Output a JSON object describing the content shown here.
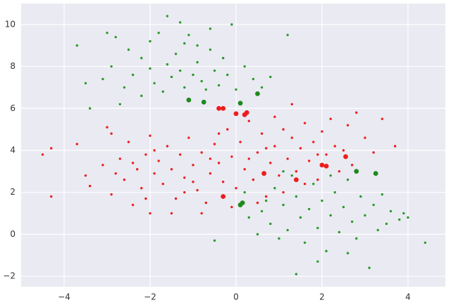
{
  "chart_data": {
    "type": "scatter",
    "xlim": [
      -5.0,
      4.87
    ],
    "ylim": [
      -2.5,
      11.0
    ],
    "xticks": [
      {
        "value": -4,
        "label": "−4"
      },
      {
        "value": -2,
        "label": "−2"
      },
      0,
      2,
      4
    ],
    "yticks": [
      {
        "value": -2,
        "label": "−2"
      },
      0,
      2,
      4,
      6,
      8,
      10
    ],
    "grid": true,
    "background": "#eaeaf2",
    "grid_color": "#ffffff",
    "series": [
      {
        "color": "#2a9a2a",
        "marker_size": 1.7,
        "x": [
          -3.7,
          -3.0,
          -2.8,
          -2.5,
          -2.2,
          -2.0,
          -1.6,
          -1.3,
          -1.1,
          -0.9,
          -0.6,
          -0.3,
          -0.1,
          0.2,
          0.4,
          0.8,
          1.2,
          -3.1,
          -2.9,
          -2.6,
          -2.4,
          -2.2,
          -2.0,
          -1.9,
          -1.7,
          -1.6,
          -1.5,
          -1.4,
          -1.3,
          -1.2,
          -1.0,
          -0.9,
          -0.8,
          -0.7,
          -0.5,
          -0.4,
          -0.2,
          0.0,
          -3.5,
          -3.4,
          -2.7,
          -1.8,
          -1.2,
          -0.6,
          0.6,
          0.2,
          0.4,
          0.6,
          0.8,
          0.9,
          1.1,
          1.2,
          1.3,
          1.4,
          1.5,
          1.6,
          1.7,
          1.8,
          1.9,
          2.0,
          2.1,
          2.2,
          2.3,
          2.4,
          2.5,
          2.6,
          2.7,
          2.8,
          2.9,
          3.0,
          3.1,
          3.2,
          3.3,
          3.4,
          3.5,
          3.6,
          3.8,
          4.0,
          4.4,
          1.4,
          1.0,
          0.5,
          -0.5,
          0.3,
          1.9,
          2.6,
          3.9,
          1.1,
          2.2,
          0.7
        ],
        "y": [
          9.0,
          9.6,
          9.4,
          8.8,
          8.4,
          9.2,
          10.4,
          10.1,
          9.5,
          9.0,
          8.8,
          8.4,
          10.0,
          8.0,
          7.4,
          7.5,
          9.5,
          7.4,
          8.0,
          7.0,
          7.6,
          6.6,
          7.9,
          7.2,
          6.8,
          8.1,
          7.5,
          8.6,
          7.8,
          7.0,
          7.6,
          8.2,
          7.3,
          6.9,
          7.8,
          7.1,
          7.6,
          6.9,
          7.2,
          6.0,
          6.2,
          9.6,
          9.1,
          9.8,
          7.0,
          2.0,
          2.6,
          1.1,
          0.5,
          2.2,
          1.4,
          0.2,
          2.8,
          1.8,
          0.8,
          -0.4,
          1.2,
          2.4,
          0.3,
          1.6,
          -0.8,
          0.9,
          2.0,
          0.1,
          1.3,
          2.6,
          0.6,
          -0.2,
          1.8,
          0.9,
          -1.6,
          1.4,
          0.2,
          1.9,
          0.5,
          1.1,
          0.7,
          0.8,
          -0.4,
          -1.9,
          -0.2,
          0.0,
          -0.3,
          0.8,
          -1.3,
          -0.9,
          1.0,
          3.0,
          2.8,
          1.6
        ]
      },
      {
        "color": "#ee1c1c",
        "marker_size": 1.7,
        "x": [
          -4.5,
          -4.3,
          -4.3,
          -3.7,
          -3.5,
          -3.4,
          -3.0,
          -2.9,
          -2.9,
          -2.7,
          -2.6,
          -2.5,
          -2.4,
          -2.3,
          -2.2,
          -2.1,
          -2.0,
          -2.0,
          -1.9,
          -1.8,
          -1.7,
          -1.6,
          -1.5,
          -1.4,
          -1.3,
          -1.2,
          -1.1,
          -1.0,
          -0.9,
          -0.8,
          -0.7,
          -0.6,
          -0.5,
          -0.4,
          -0.3,
          -0.2,
          -0.1,
          0.0,
          0.1,
          0.2,
          0.3,
          0.4,
          0.5,
          0.6,
          0.7,
          0.8,
          0.9,
          1.0,
          1.1,
          1.2,
          1.3,
          1.4,
          1.5,
          1.6,
          1.7,
          1.8,
          1.9,
          2.0,
          2.1,
          2.2,
          2.3,
          2.4,
          2.6,
          2.8,
          3.0,
          3.2,
          3.7,
          -1.5,
          -1.9,
          -2.4,
          -0.6,
          0.5,
          1.1,
          -0.1,
          0.3,
          1.3,
          -3.1,
          -2.8,
          -1.2,
          0.9,
          1.6,
          -0.4,
          2.7,
          3.4,
          -1.0,
          0.7,
          1.9,
          -2.1,
          -0.8,
          2.5
        ],
        "y": [
          3.8,
          1.8,
          4.1,
          4.3,
          2.8,
          2.3,
          5.1,
          4.8,
          1.9,
          3.6,
          2.6,
          4.4,
          1.4,
          3.1,
          2.2,
          3.8,
          4.7,
          1.0,
          2.9,
          3.5,
          2.4,
          4.2,
          3.1,
          1.7,
          3.8,
          2.7,
          4.6,
          3.3,
          2.1,
          3.9,
          1.5,
          2.9,
          4.3,
          3.4,
          2.5,
          5.0,
          3.7,
          2.2,
          4.4,
          3.1,
          5.4,
          2.6,
          3.9,
          4.8,
          1.8,
          3.4,
          4.2,
          2.8,
          5.0,
          3.6,
          4.6,
          3.0,
          4.1,
          5.3,
          3.5,
          4.4,
          2.6,
          4.9,
          3.8,
          5.5,
          4.2,
          3.0,
          5.2,
          5.8,
          4.6,
          3.9,
          4.2,
          1.0,
          4.0,
          3.4,
          3.6,
          1.5,
          2.0,
          1.3,
          3.6,
          6.2,
          3.3,
          2.9,
          2.0,
          5.6,
          2.4,
          4.8,
          3.3,
          5.5,
          2.5,
          4.1,
          3.8,
          1.7,
          1.0,
          4.0
        ]
      },
      {
        "color": "#ee1c1c",
        "marker_size": 3.4,
        "x": [
          -0.4,
          -0.3,
          0.0,
          0.25,
          0.2,
          -0.3,
          0.65,
          1.4,
          2.0,
          2.1,
          2.55
        ],
        "y": [
          6.0,
          6.0,
          5.75,
          5.8,
          5.7,
          1.8,
          2.9,
          2.6,
          3.3,
          3.25,
          3.7
        ]
      },
      {
        "color": "#1e8a1e",
        "marker_size": 3.4,
        "x": [
          -1.1,
          -0.75,
          0.1,
          0.5,
          0.1,
          0.15,
          2.8,
          3.25
        ],
        "y": [
          6.4,
          6.3,
          6.25,
          6.7,
          1.4,
          1.5,
          3.0,
          2.9
        ]
      }
    ]
  }
}
